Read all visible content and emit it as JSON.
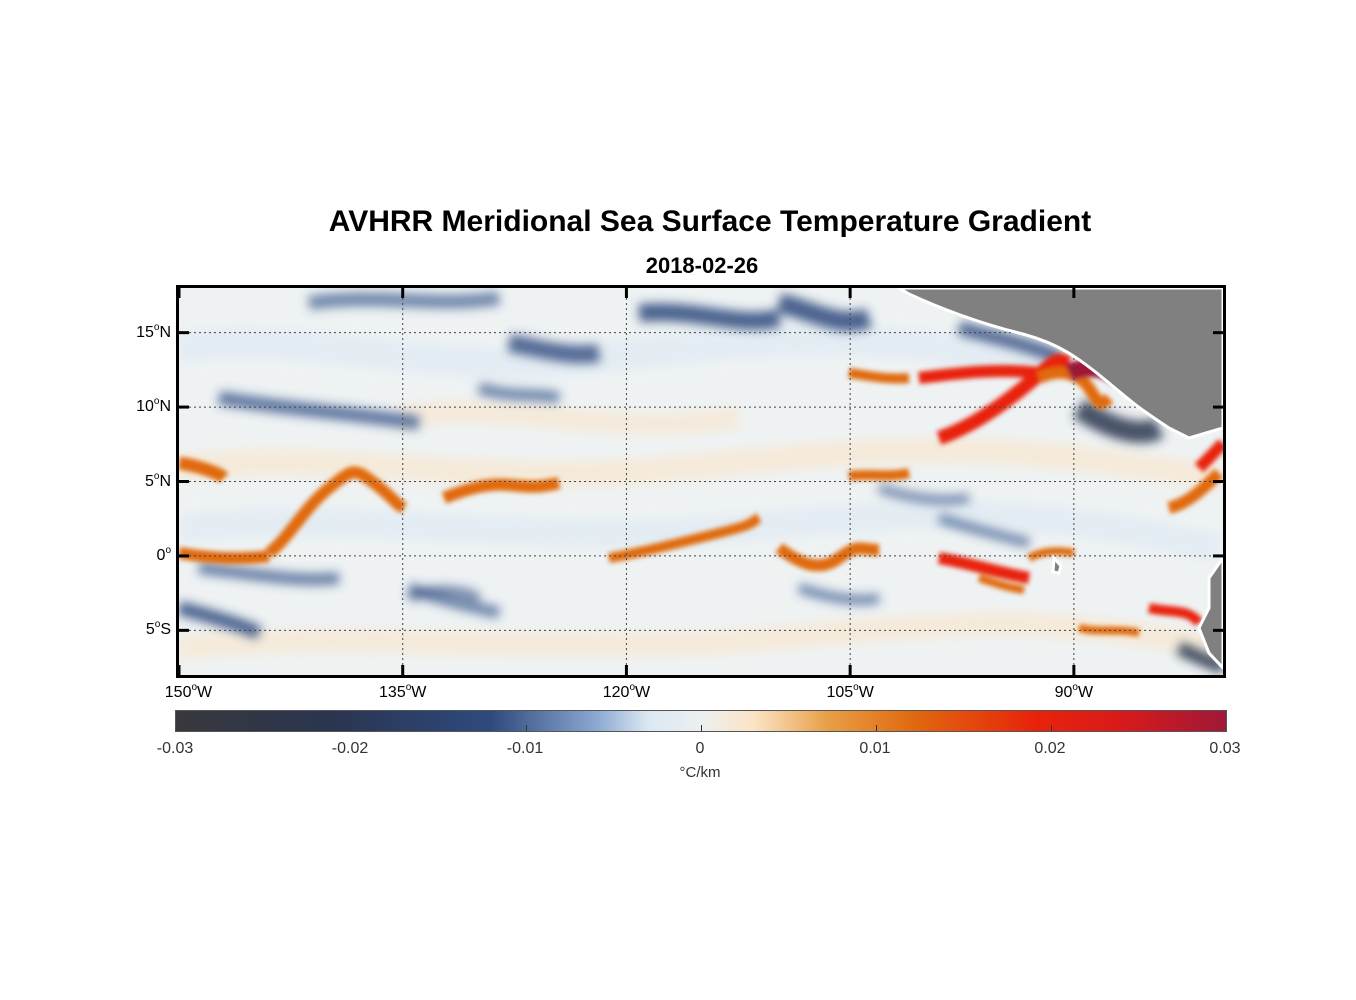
{
  "title": "AVHRR Meridional Sea Surface Temperature Gradient",
  "subtitle": "2018-02-26",
  "map": {
    "lon_range": [
      -150,
      -80
    ],
    "lat_range": [
      -8,
      18
    ],
    "lon_ticks": [
      {
        "value": -150,
        "num": "150",
        "hemi": "W"
      },
      {
        "value": -135,
        "num": "135",
        "hemi": "W"
      },
      {
        "value": -120,
        "num": "120",
        "hemi": "W"
      },
      {
        "value": -105,
        "num": "105",
        "hemi": "W"
      },
      {
        "value": -90,
        "num": "90",
        "hemi": "W"
      }
    ],
    "lat_ticks": [
      {
        "value": 15,
        "num": "15",
        "hemi": "N"
      },
      {
        "value": 10,
        "num": "10",
        "hemi": "N"
      },
      {
        "value": 5,
        "num": "5",
        "hemi": "N"
      },
      {
        "value": 0,
        "num": "0",
        "hemi": ""
      },
      {
        "value": -5,
        "num": "5",
        "hemi": "S"
      }
    ],
    "degree_symbol": "o",
    "colors": {
      "land": "#808080",
      "positive": "#e06a10",
      "strong_positive": "#e8220a",
      "extreme_positive": "#a01838",
      "negative": "#2e4a7e",
      "strong_negative": "#2a3550"
    }
  },
  "colorbar": {
    "min": -0.03,
    "max": 0.03,
    "ticks": [
      "-0.03",
      "-0.02",
      "-0.01",
      "0",
      "0.01",
      "0.02",
      "0.03"
    ],
    "unit": "°C/km"
  }
}
